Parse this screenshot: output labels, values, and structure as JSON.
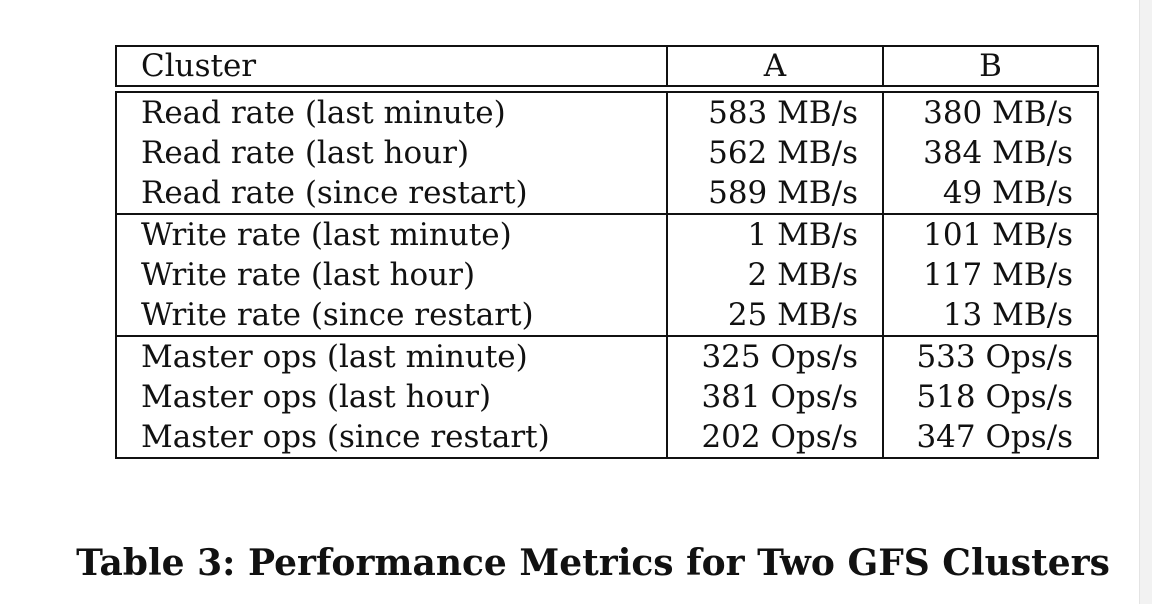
{
  "table": {
    "headers": [
      "Cluster",
      "A",
      "B"
    ],
    "rows": [
      [
        "Read rate (last minute)",
        "583 MB/s",
        "380 MB/s"
      ],
      [
        "Read rate (last hour)",
        "562 MB/s",
        "384 MB/s"
      ],
      [
        "Read rate (since restart)",
        "589 MB/s",
        "49 MB/s"
      ],
      [
        "Write rate (last minute)",
        "1 MB/s",
        "101 MB/s"
      ],
      [
        "Write rate (last hour)",
        "2 MB/s",
        "117 MB/s"
      ],
      [
        "Write rate (since restart)",
        "25 MB/s",
        "13 MB/s"
      ],
      [
        "Master ops (last minute)",
        "325 Ops/s",
        "533 Ops/s"
      ],
      [
        "Master ops (last hour)",
        "381 Ops/s",
        "518 Ops/s"
      ],
      [
        "Master ops (since restart)",
        "202 Ops/s",
        "347 Ops/s"
      ]
    ]
  },
  "caption": "Table 3: Performance Metrics for Two GFS Clusters"
}
